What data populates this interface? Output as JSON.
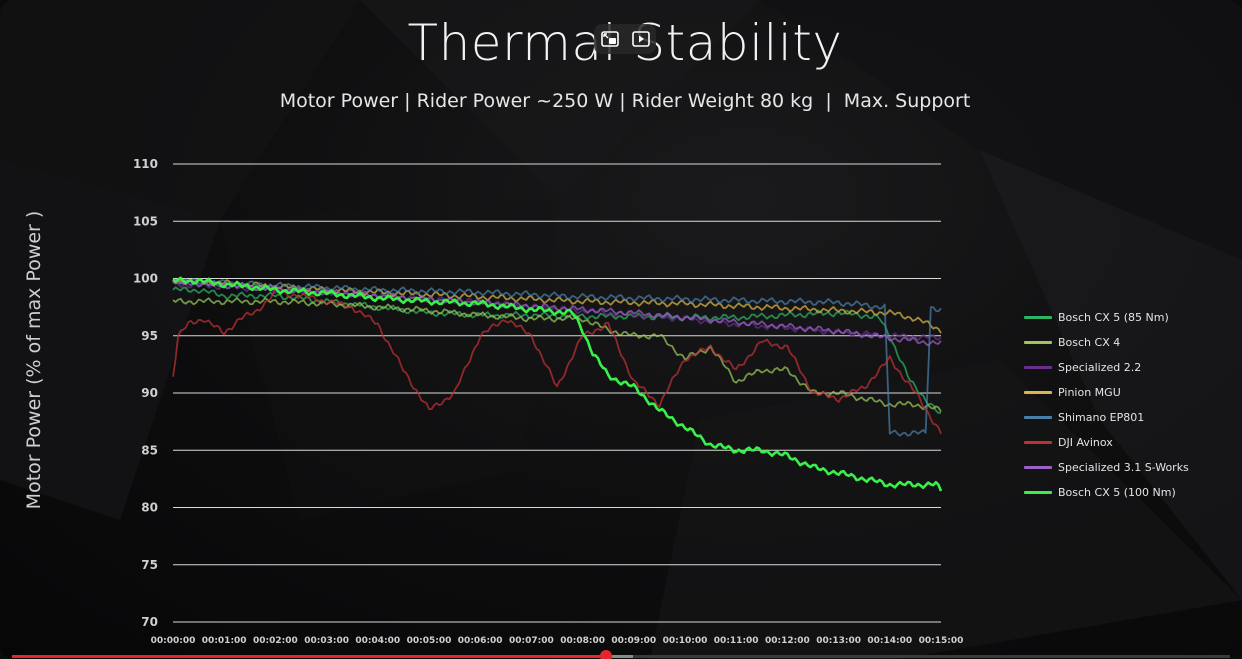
{
  "player": {
    "miniplayer_icon": "miniplayer-icon",
    "cast_icon": "play-queue-icon",
    "progress_fraction": 0.488,
    "buffer_fraction": 0.51,
    "progress_color": "#e5262a"
  },
  "chart_data": {
    "type": "line",
    "title": "Thermal Stability",
    "subtitle": "Motor Power | Rider Power ~250 W | Rider Weight 80 kg  |  Max. Support",
    "ylabel": "Motor Power (% of max Power )",
    "xlabel": "",
    "ylim": [
      70,
      110
    ],
    "yticks": [
      "70",
      "75",
      "80",
      "85",
      "90",
      "95",
      "100",
      "105",
      "110"
    ],
    "xticks": [
      "00:00:00",
      "00:01:00",
      "00:02:00",
      "00:03:00",
      "00:04:00",
      "00:05:00",
      "00:06:00",
      "00:07:00",
      "00:08:00",
      "00:09:00",
      "00:10:00",
      "00:11:00",
      "00:12:00",
      "00:13:00",
      "00:14:00",
      "00:15:00"
    ],
    "grid": "horizontal",
    "legend_position": "right",
    "series": [
      {
        "name": "Bosch CX 5 (85 Nm)",
        "color": "#2db565",
        "x": [
          0,
          0.5,
          1,
          2,
          3,
          4,
          5,
          6,
          7,
          8,
          9,
          10,
          11,
          12,
          13,
          13.5,
          13.8,
          14,
          14.2,
          14.4,
          14.6,
          14.8,
          15
        ],
        "y": [
          99,
          99,
          98.5,
          98.5,
          98,
          97.5,
          97,
          96.8,
          96.8,
          96.7,
          96.7,
          96.6,
          96.6,
          96.8,
          97,
          96.8,
          96.5,
          95,
          93,
          91,
          90,
          89,
          88
        ]
      },
      {
        "name": "Bosch CX 4",
        "color": "#9cc85a",
        "x": [
          0,
          1,
          2,
          3,
          4,
          5,
          6,
          7,
          8,
          8.5,
          9,
          9.5,
          10,
          10.5,
          11,
          11.5,
          12,
          12.5,
          13,
          13.5,
          14,
          14.5,
          15
        ],
        "y": [
          98,
          98,
          98,
          97.8,
          97.5,
          97.2,
          96.8,
          96.5,
          96.5,
          95.5,
          95,
          95,
          93,
          94,
          91,
          92,
          92,
          90,
          90,
          89.5,
          89,
          89,
          88.5
        ]
      },
      {
        "name": "Specialized 2.2",
        "color": "#6a2e8c",
        "x": [
          0,
          1,
          2,
          3,
          4,
          5,
          6,
          7,
          8,
          9,
          10,
          11,
          12,
          13,
          14,
          15
        ],
        "y": [
          99.5,
          99.3,
          99,
          98.8,
          98.5,
          98.2,
          98,
          97.5,
          97.2,
          96.8,
          96.5,
          96,
          95.7,
          95.3,
          95,
          94.8
        ]
      },
      {
        "name": "Pinion MGU",
        "color": "#d8b84a",
        "x": [
          0,
          1,
          2,
          3,
          4,
          5,
          6,
          7,
          8,
          9,
          10,
          11,
          12,
          13,
          14,
          14.5,
          15
        ],
        "y": [
          99.8,
          99.6,
          99.3,
          99,
          98.8,
          98.6,
          98.4,
          98.2,
          98,
          97.9,
          97.8,
          97.6,
          97.4,
          97.2,
          97,
          96.5,
          95.5
        ]
      },
      {
        "name": "Shimano EP801",
        "color": "#4a7fa8",
        "x": [
          0,
          1,
          2,
          3,
          4,
          5,
          6,
          7,
          8,
          9,
          10,
          11,
          12,
          13,
          13.9,
          14,
          14.1,
          14.7,
          14.8,
          15
        ],
        "y": [
          99.8,
          99.6,
          99.4,
          99.2,
          99,
          98.9,
          98.8,
          98.6,
          98.4,
          98.3,
          98.2,
          98.1,
          98,
          97.9,
          97.5,
          86.5,
          86.5,
          86.5,
          97.5,
          97.3
        ]
      },
      {
        "name": "DJI Avinox",
        "color": "#c03036",
        "x": [
          0,
          0.1,
          0.3,
          0.6,
          1,
          1.3,
          1.6,
          2,
          2.5,
          3,
          3.5,
          4,
          4.5,
          5,
          5.5,
          6,
          6.5,
          7,
          7.5,
          8,
          8.5,
          9,
          9.5,
          10,
          10.5,
          11,
          11.5,
          12,
          12.5,
          13,
          13.5,
          14,
          14.5,
          15
        ],
        "y": [
          91.5,
          95,
          96,
          96.5,
          95.2,
          96.5,
          97,
          98.8,
          98.5,
          98,
          97.5,
          96,
          92,
          88.5,
          90,
          95,
          96.5,
          95,
          90.5,
          95,
          96,
          91,
          89,
          93,
          94,
          92,
          94.5,
          94,
          90,
          89.5,
          90.5,
          93,
          90,
          86.5
        ]
      },
      {
        "name": "Specialized 3.1 S-Works",
        "color": "#9a62c8",
        "x": [
          0,
          1,
          2,
          3,
          4,
          5,
          6,
          7,
          8,
          9,
          10,
          11,
          12,
          13,
          14,
          15
        ],
        "y": [
          99.7,
          99.4,
          99.1,
          98.8,
          98.5,
          98.2,
          97.9,
          97.6,
          97.3,
          97,
          96.6,
          96.2,
          95.8,
          95.4,
          94.8,
          94.3
        ]
      },
      {
        "name": "Bosch CX 5 (100 Nm)",
        "color": "#39ef4a",
        "x": [
          0,
          0.5,
          1,
          1.5,
          2,
          3,
          4,
          5,
          6,
          7,
          7.8,
          8,
          8.2,
          8.5,
          9,
          9.5,
          10,
          10.5,
          11,
          11.5,
          12,
          12.5,
          13,
          13.5,
          14,
          14.5,
          14.9,
          15
        ],
        "y": [
          99.8,
          99.8,
          99.5,
          99.3,
          99,
          98.7,
          98.3,
          98,
          97.8,
          97.3,
          97,
          95.5,
          93.5,
          91.5,
          90.5,
          88.5,
          87,
          85.5,
          85,
          85,
          84.5,
          83.5,
          83,
          82.5,
          82,
          82,
          82,
          81.5
        ]
      }
    ]
  }
}
